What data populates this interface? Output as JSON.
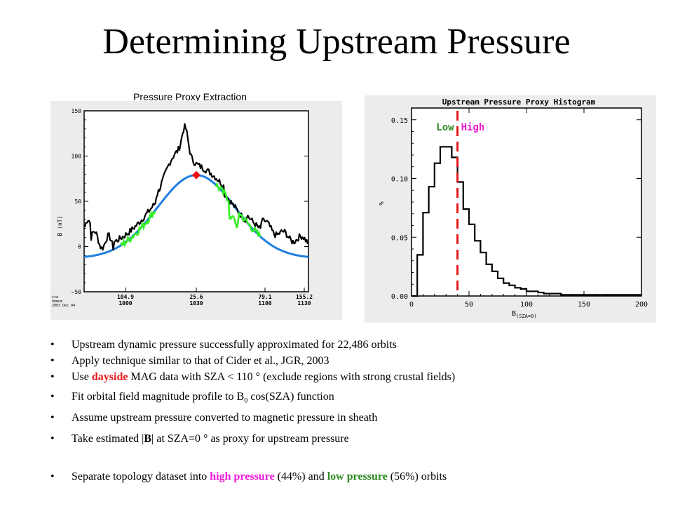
{
  "slide": {
    "title": "Determining Upstream Pressure"
  },
  "left_caption": "Pressure Proxy Extraction",
  "chart_data": [
    {
      "type": "line",
      "ylabel": "B (nT)",
      "ylim": [
        -50,
        150
      ],
      "yticks": [
        "150",
        "100",
        "50",
        "0",
        "−50"
      ],
      "xticks": [
        {
          "sza": "104.9",
          "time": "1000"
        },
        {
          "sza": "25.6",
          "time": "1030"
        },
        {
          "sza": "79.1",
          "time": "1100"
        },
        {
          "sza": "155.2",
          "time": "1130"
        }
      ],
      "corner_text": [
        "sta",
        "hbmum",
        "2003 Dec 04"
      ],
      "fit_peak": 79,
      "series": [
        {
          "role": "fit",
          "color": "#1f7fe0"
        },
        {
          "role": "data",
          "color": "#000000"
        },
        {
          "role": "dayside-fit-data",
          "color": "#33ee22"
        },
        {
          "role": "proxy-point",
          "color": "#ee1111"
        }
      ]
    },
    {
      "type": "bar",
      "title": "Upstream Pressure Proxy Histogram",
      "ylabel": "%",
      "xlabel_main": "B",
      "xlabel_sub": "(SZA=0)",
      "xlim": [
        0,
        200
      ],
      "ylim": [
        0,
        0.16
      ],
      "xticks": [
        "0",
        "50",
        "100",
        "150",
        "200"
      ],
      "yticks": [
        "0.00",
        "0.05",
        "0.10",
        "0.15"
      ],
      "bin_width": 5,
      "values": [
        0.0,
        0.035,
        0.071,
        0.093,
        0.113,
        0.127,
        0.127,
        0.118,
        0.097,
        0.074,
        0.061,
        0.047,
        0.037,
        0.027,
        0.021,
        0.015,
        0.011,
        0.009,
        0.007,
        0.006,
        0.004,
        0.004,
        0.003,
        0.002,
        0.002,
        0.002,
        0.001,
        0.001,
        0.001,
        0.001,
        0.001,
        0.001,
        0.001,
        0.001,
        0.001,
        0.001,
        0.001,
        0.001,
        0.001,
        0.001
      ],
      "threshold": 40,
      "threshold_color": "#e31a1c",
      "low_label": "Low",
      "high_label": "High",
      "low_color": "#2e8b22",
      "high_color": "#ee1cd8"
    }
  ],
  "bullets": {
    "b1": "Upstream dynamic pressure successfully approximated for 22,486 orbits",
    "b2": "Apply technique similar to that of Cider et al., JGR, 2003",
    "b3_pre": "Use ",
    "b3_hl": "dayside",
    "b3_post": " MAG data with SZA < 110 ° (exclude regions with strong crustal fields)",
    "b4_pre": "Fit orbital field magnitude profile to B",
    "b4_sub": "0",
    "b4_post": " cos(SZA) function",
    "b5": "Assume upstream pressure converted to magnetic pressure in sheath",
    "b6_pre": "Take estimated |",
    "b6_bold": "B",
    "b6_post": "| at SZA=0 ° as proxy for upstream pressure",
    "b7_pre": "Separate topology dataset into ",
    "b7_high": "high pressure",
    "b7_mid": " (44%) and ",
    "b7_low": "low pressure",
    "b7_post": " (56%) orbits"
  }
}
